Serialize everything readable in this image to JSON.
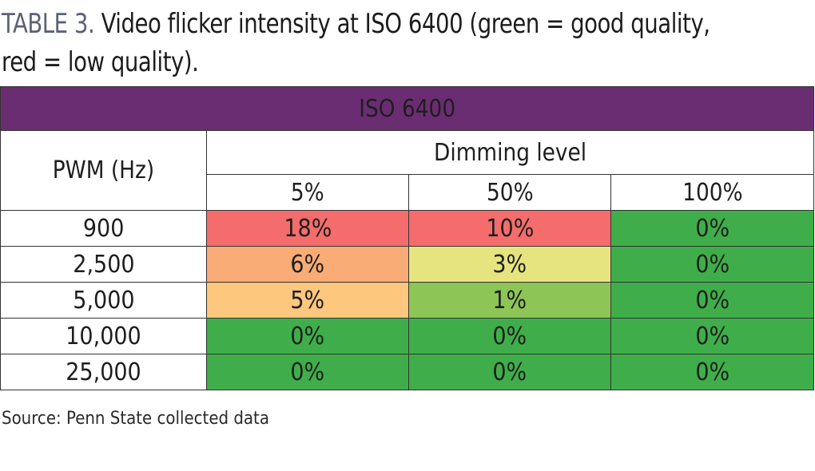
{
  "caption": {
    "label": "TABLE 3.",
    "text": "Video flicker intensity at ISO 6400 (green = good quality, red = low quality)."
  },
  "table": {
    "banner": "ISO 6400",
    "row_header": "PWM (Hz)",
    "group_header": "Dimming level",
    "columns": [
      "5%",
      "50%",
      "100%"
    ],
    "rows": [
      {
        "pwm": "900",
        "cells": [
          "18%",
          "10%",
          "0%"
        ],
        "colors": [
          "#f46c6c",
          "#f46c6c",
          "#3fae4a"
        ]
      },
      {
        "pwm": "2,500",
        "cells": [
          "6%",
          "3%",
          "0%"
        ],
        "colors": [
          "#f9ac76",
          "#e6e47e",
          "#3fae4a"
        ]
      },
      {
        "pwm": "5,000",
        "cells": [
          "5%",
          "1%",
          "0%"
        ],
        "colors": [
          "#fdc77d",
          "#8ec557",
          "#3fae4a"
        ]
      },
      {
        "pwm": "10,000",
        "cells": [
          "0%",
          "0%",
          "0%"
        ],
        "colors": [
          "#3fae4a",
          "#3fae4a",
          "#3fae4a"
        ]
      },
      {
        "pwm": "25,000",
        "cells": [
          "0%",
          "0%",
          "0%"
        ],
        "colors": [
          "#3fae4a",
          "#3fae4a",
          "#3fae4a"
        ]
      }
    ]
  },
  "source": "Source: Penn State collected data",
  "colors": {
    "banner": "#6b2d72",
    "red": "#f46c6c",
    "orange": "#f9ac76",
    "light_orange": "#fdc77d",
    "yellow": "#e6e47e",
    "light_green": "#8ec557",
    "green": "#3fae4a"
  },
  "chart_data": {
    "type": "table",
    "title": "TABLE 3. Video flicker intensity at ISO 6400 (green = good quality, red = low quality).",
    "banner": "ISO 6400",
    "row_label": "PWM (Hz)",
    "column_group_label": "Dimming level",
    "columns": [
      "5%",
      "50%",
      "100%"
    ],
    "row_keys": [
      "900",
      "2,500",
      "5,000",
      "10,000",
      "25,000"
    ],
    "values": [
      [
        18,
        10,
        0
      ],
      [
        6,
        3,
        0
      ],
      [
        5,
        1,
        0
      ],
      [
        0,
        0,
        0
      ],
      [
        0,
        0,
        0
      ]
    ],
    "unit": "%",
    "source": "Source: Penn State collected data"
  }
}
